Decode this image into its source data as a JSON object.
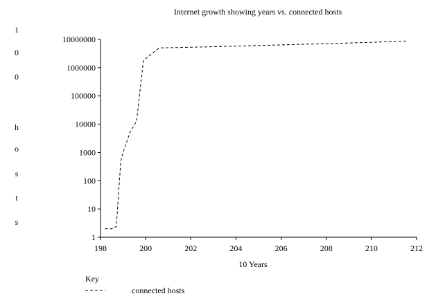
{
  "chart_data": {
    "type": "line",
    "title": "Internet growth showing years vs. connected hosts",
    "xlabel": "10 Years",
    "ylabel_chars": [
      "1",
      "0",
      "0",
      "h",
      "o",
      "s",
      "t",
      "s"
    ],
    "x_ticks": [
      198,
      200,
      202,
      204,
      206,
      208,
      210,
      212
    ],
    "xlim": [
      198,
      212
    ],
    "y_scale": "log",
    "y_ticks": [
      "1",
      "10",
      "100",
      "1000",
      "10000",
      "100000",
      "1000000",
      "10000000"
    ],
    "ylim": [
      1,
      10000000
    ],
    "grid": false,
    "legend": {
      "title": "Key",
      "placement": "bottom-left"
    },
    "series": [
      {
        "name": "connected hosts",
        "line_style": "dashed",
        "color": "#000000",
        "x": [
          198.2,
          198.5,
          198.7,
          198.9,
          199.0,
          199.3,
          199.6,
          199.9,
          200.6,
          202.0,
          204.0,
          206.0,
          208.0,
          210.0,
          211.6
        ],
        "y": [
          2,
          2,
          2.4,
          500,
          1000,
          5000,
          13000,
          1800000,
          5000000,
          5300000,
          5800000,
          6400000,
          7100000,
          7900000,
          8800000
        ]
      }
    ]
  }
}
